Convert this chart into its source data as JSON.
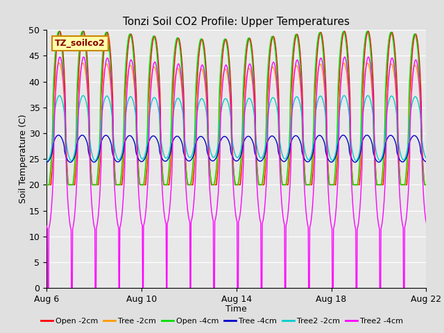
{
  "title": "Tonzi Soil CO2 Profile: Upper Temperatures",
  "xlabel": "Time",
  "ylabel": "Soil Temperature (C)",
  "ylim": [
    0,
    50
  ],
  "yticks": [
    0,
    5,
    10,
    15,
    20,
    25,
    30,
    35,
    40,
    45,
    50
  ],
  "n_days": 17,
  "pts_per_day": 96,
  "series": [
    {
      "label": "Open -2cm",
      "color": "#ff0000",
      "mean": 33,
      "amp": 16,
      "phase": 0.0,
      "drop": false,
      "min_val": 20
    },
    {
      "label": "Tree -2cm",
      "color": "#ff9900",
      "mean": 31,
      "amp": 12,
      "phase": 0.02,
      "drop": false,
      "min_val": 20
    },
    {
      "label": "Open -4cm",
      "color": "#00dd00",
      "mean": 34,
      "amp": 15,
      "phase": 0.04,
      "drop": false,
      "min_val": 20
    },
    {
      "label": "Tree -4cm",
      "color": "#0000cc",
      "mean": 27,
      "amp": 2.5,
      "phase": 0.05,
      "drop": false,
      "min_val": 23
    },
    {
      "label": "Tree2 -2cm",
      "color": "#00cccc",
      "mean": 31,
      "amp": 6,
      "phase": 0.01,
      "drop": false,
      "min_val": 24
    },
    {
      "label": "Tree2 -4cm",
      "color": "#ff00ff",
      "mean": 28,
      "amp": 16,
      "phase": -0.01,
      "drop": true,
      "min_val": 0
    }
  ],
  "xtick_labels": [
    "Aug 6",
    "Aug 10",
    "Aug 14",
    "Aug 18",
    "Aug 22"
  ],
  "xtick_positions": [
    0,
    4,
    8,
    12,
    16
  ],
  "annotation_text": "TZ_soilco2",
  "annotation_facecolor": "#ffffaa",
  "annotation_edgecolor": "#cc8800",
  "annotation_textcolor": "#880000",
  "fig_facecolor": "#e0e0e0",
  "ax_facecolor": "#e8e8e8",
  "grid_color": "#ffffff",
  "figsize": [
    6.4,
    4.8
  ],
  "dpi": 100,
  "title_fontsize": 11,
  "axis_fontsize": 9,
  "legend_fontsize": 8
}
